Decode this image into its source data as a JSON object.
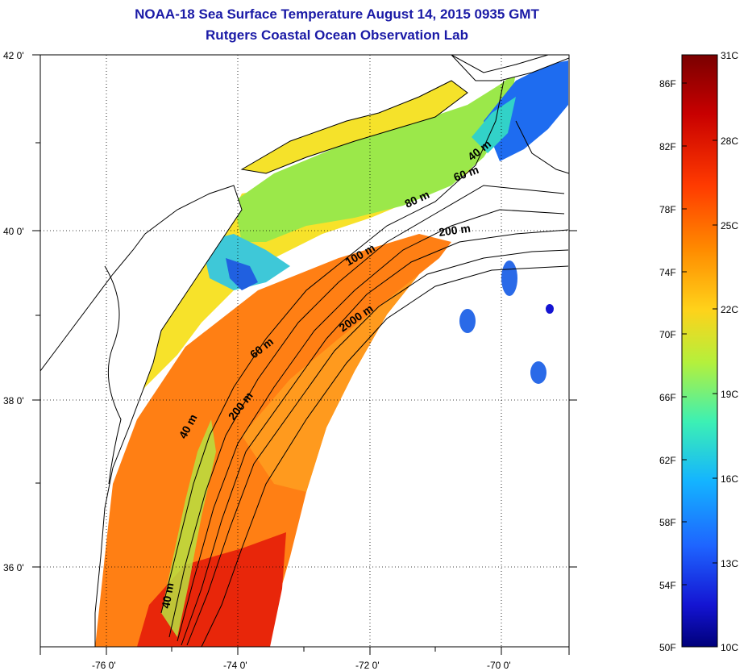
{
  "title": "NOAA-18 Sea Surface Temperature August 14, 2015 0935 GMT",
  "subtitle": "Rutgers Coastal Ocean Observation Lab",
  "map": {
    "lat_ticks": [
      "42 0'",
      "40 0'",
      "38 0'",
      "36 0'"
    ],
    "lon_ticks": [
      "-76 0'",
      "-74 0'",
      "-72 0'",
      "-70 0'"
    ],
    "contour_labels": [
      "40 m",
      "60 m",
      "80 m",
      "200 m",
      "100 m",
      "2000 m",
      "60 m",
      "40 m",
      "200 m",
      "40 m"
    ]
  },
  "colorbar": {
    "celsius_labels": [
      "31C",
      "28C",
      "25C",
      "22C",
      "19C",
      "16C",
      "13C",
      "10C"
    ],
    "fahrenheit_labels": [
      "86F",
      "82F",
      "78F",
      "74F",
      "70F",
      "66F",
      "62F",
      "58F",
      "54F",
      "50F"
    ],
    "colors": [
      "#7a0000",
      "#c80000",
      "#ff3a00",
      "#ff8c00",
      "#ffd21a",
      "#b4f03c",
      "#3cf0b4",
      "#14b4ff",
      "#1e64ff",
      "#1414d2",
      "#00007a"
    ]
  }
}
